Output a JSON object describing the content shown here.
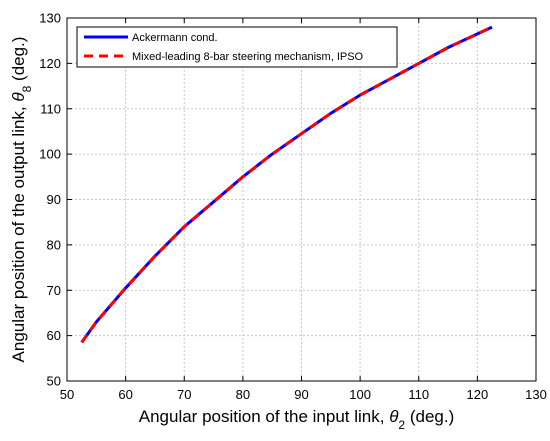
{
  "chart_data": {
    "type": "line",
    "xlabel": {
      "text": "Angular position of the input link, ",
      "symbol": "θ",
      "sub": "2",
      "unit": " (deg.)"
    },
    "ylabel": {
      "text": "Angular position of the output link, ",
      "symbol": "θ",
      "sub": "8",
      "unit": " (deg.)"
    },
    "xlim": [
      50,
      130
    ],
    "ylim": [
      50,
      130
    ],
    "xticks": [
      50,
      60,
      70,
      80,
      90,
      100,
      110,
      120,
      130
    ],
    "yticks": [
      50,
      60,
      70,
      80,
      90,
      100,
      110,
      120,
      130
    ],
    "grid": true,
    "grid_style": "dotted",
    "legend_position": "top-left",
    "series": [
      {
        "name": "Ackermann cond.",
        "color": "#0000ff",
        "style": "solid",
        "x": [
          52.5,
          55,
          60,
          65,
          70,
          75,
          80,
          85,
          90,
          95,
          100,
          105,
          110,
          115,
          120,
          122.5
        ],
        "y": [
          58.5,
          63,
          70.5,
          77.5,
          84,
          89.5,
          95,
          100,
          104.5,
          109,
          113,
          116.5,
          120,
          123.5,
          126.5,
          128
        ]
      },
      {
        "name": "Mixed-leading 8-bar steering mechanism, IPSO",
        "color": "#ff0000",
        "style": "dashed",
        "x": [
          52.5,
          55,
          60,
          65,
          70,
          75,
          80,
          85,
          90,
          95,
          100,
          105,
          110,
          115,
          120,
          122.5
        ],
        "y": [
          58.5,
          63,
          70.5,
          77.5,
          84,
          89.5,
          95,
          100,
          104.5,
          109,
          113,
          116.5,
          120,
          123.5,
          126.5,
          128
        ]
      }
    ]
  }
}
